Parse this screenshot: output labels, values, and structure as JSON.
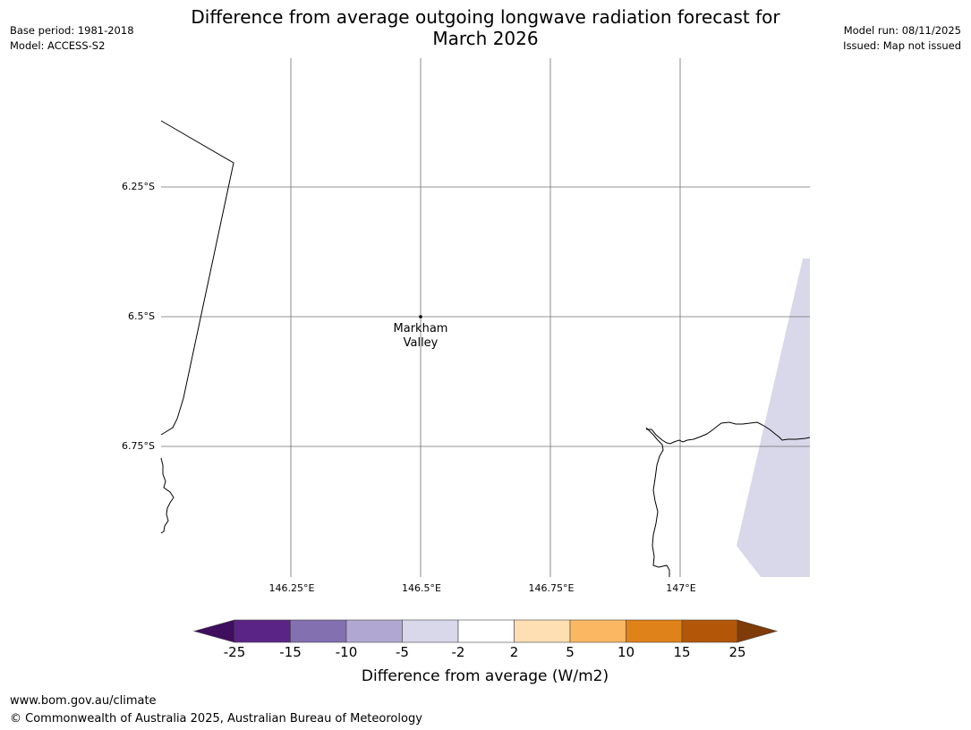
{
  "header": {
    "title_line1": "Difference from average outgoing longwave radiation forecast for",
    "title_line2": "March 2026",
    "base_period": "Base period: 1981-2018",
    "model": "Model: ACCESS-S2",
    "model_run": "Model run: 08/11/2025",
    "issued": "Issued: Map not issued"
  },
  "map": {
    "lat_labels": [
      "6.25°S",
      "6.5°S",
      "6.75°S"
    ],
    "lon_labels": [
      "146.25°E",
      "146.5°E",
      "146.75°E",
      "147°E"
    ],
    "place": {
      "name_line1": "Markham",
      "name_line2": "Valley",
      "lon": 146.5,
      "lat": -6.5
    },
    "colors": {
      "coast": "#000000",
      "grid": "#6f6f6f",
      "anomaly_fill": "#d8d8ea"
    }
  },
  "colorbar": {
    "ticks": [
      "-25",
      "-15",
      "-10",
      "-5",
      "-2",
      "2",
      "5",
      "10",
      "15",
      "25"
    ],
    "label": "Difference from average (W/m2)",
    "colors": [
      "#3f0e5e",
      "#5a2486",
      "#8270b0",
      "#b0a8d2",
      "#d8d8ea",
      "#ffffff",
      "#fedfb4",
      "#fbb762",
      "#e0821a",
      "#b35608",
      "#7f3b08"
    ]
  },
  "footer": {
    "url": "www.bom.gov.au/climate",
    "copyright": "© Commonwealth of Australia 2025, Australian Bureau of Meteorology"
  }
}
